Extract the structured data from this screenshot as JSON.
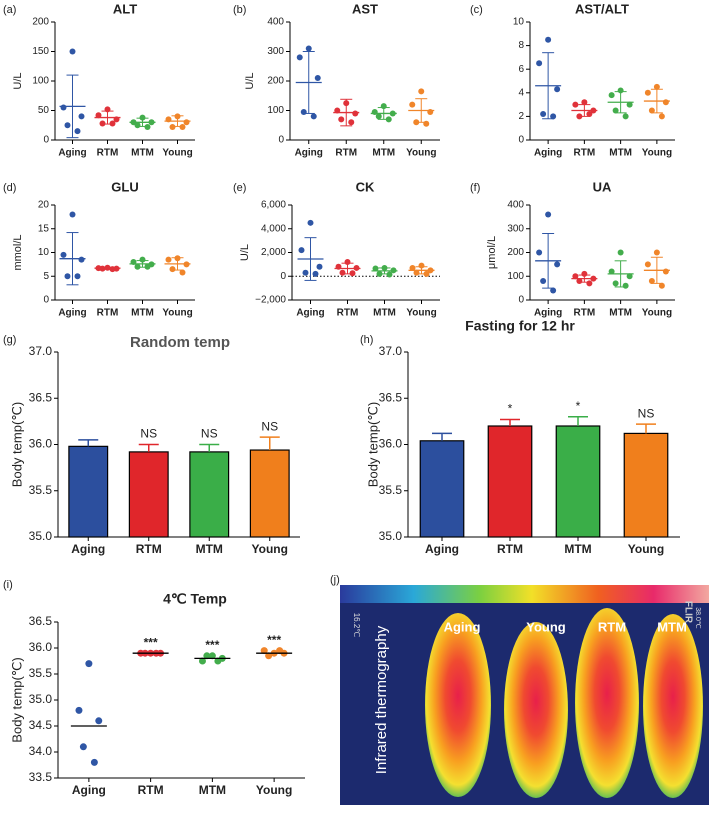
{
  "chart_data": [
    {
      "type": "dot",
      "label": "(a)",
      "title": "ALT",
      "ylabel": "U/L",
      "categories": [
        "Aging",
        "RTM",
        "MTM",
        "Young"
      ],
      "colors": [
        "#2f56a5",
        "#e0323a",
        "#43ad4c",
        "#f0852a"
      ],
      "points": [
        [
          150,
          55,
          40,
          25,
          15
        ],
        [
          52,
          42,
          35,
          28,
          28
        ],
        [
          38,
          30,
          30,
          25,
          22
        ],
        [
          40,
          35,
          30,
          22,
          22
        ]
      ],
      "mean": [
        57,
        38,
        30,
        32
      ],
      "sd": [
        53,
        11,
        7,
        9
      ],
      "ylim": [
        0,
        200
      ],
      "yticks": [
        0,
        50,
        100,
        150,
        200
      ]
    },
    {
      "type": "dot",
      "label": "(b)",
      "title": "AST",
      "ylabel": "U/L",
      "categories": [
        "Aging",
        "RTM",
        "MTM",
        "Young"
      ],
      "colors": [
        "#2f56a5",
        "#e0323a",
        "#43ad4c",
        "#f0852a"
      ],
      "points": [
        [
          310,
          280,
          210,
          95,
          80
        ],
        [
          125,
          100,
          90,
          70,
          60
        ],
        [
          115,
          95,
          90,
          80,
          70
        ],
        [
          165,
          120,
          95,
          60,
          55
        ]
      ],
      "mean": [
        195,
        93,
        90,
        100
      ],
      "sd": [
        105,
        45,
        20,
        40
      ],
      "ylim": [
        0,
        400
      ],
      "yticks": [
        0,
        100,
        200,
        300,
        400
      ]
    },
    {
      "type": "dot",
      "label": "(c)",
      "title": "AST/ALT",
      "categories": [
        "Aging",
        "RTM",
        "MTM",
        "Young"
      ],
      "colors": [
        "#2f56a5",
        "#e0323a",
        "#43ad4c",
        "#f0852a"
      ],
      "points": [
        [
          8.5,
          6.5,
          4.3,
          2.2,
          2.0
        ],
        [
          3.2,
          3.0,
          2.5,
          2.0,
          2.2
        ],
        [
          4.2,
          3.8,
          3.0,
          2.5,
          2.0
        ],
        [
          4.5,
          4.0,
          3.2,
          2.5,
          2.0
        ]
      ],
      "mean": [
        4.6,
        2.5,
        3.2,
        3.3
      ],
      "sd": [
        2.8,
        0.5,
        0.9,
        1.0
      ],
      "ylim": [
        0,
        10
      ],
      "yticks": [
        0,
        2,
        4,
        6,
        8,
        10
      ]
    },
    {
      "type": "dot",
      "label": "(d)",
      "title": "GLU",
      "ylabel": "mmol/L",
      "categories": [
        "Aging",
        "RTM",
        "MTM",
        "Young"
      ],
      "colors": [
        "#2f56a5",
        "#e0323a",
        "#43ad4c",
        "#f0852a"
      ],
      "points": [
        [
          18,
          9.5,
          8.5,
          5,
          5
        ],
        [
          6.8,
          6.7,
          6.6,
          6.6,
          6.5
        ],
        [
          8.5,
          8,
          7.5,
          7,
          7
        ],
        [
          8.8,
          8.5,
          7.5,
          6.5,
          5.8
        ]
      ],
      "mean": [
        8.7,
        6.7,
        7.6,
        7.6
      ],
      "sd": [
        5.5,
        0.2,
        0.7,
        1.3
      ],
      "ylim": [
        0,
        20
      ],
      "yticks": [
        0,
        5,
        10,
        15,
        20
      ]
    },
    {
      "type": "dot",
      "label": "(e)",
      "title": "CK",
      "ylabel": "U/L",
      "categories": [
        "Aging",
        "RTM",
        "MTM",
        "Young"
      ],
      "colors": [
        "#2f56a5",
        "#e0323a",
        "#43ad4c",
        "#f0852a"
      ],
      "points": [
        [
          4500,
          2200,
          800,
          300,
          200
        ],
        [
          1200,
          800,
          700,
          300,
          250
        ],
        [
          700,
          650,
          500,
          200,
          150
        ],
        [
          900,
          700,
          500,
          300,
          200
        ]
      ],
      "mean": [
        1450,
        650,
        450,
        500
      ],
      "sd": [
        1800,
        450,
        250,
        300
      ],
      "ylim": [
        -2000,
        6000
      ],
      "yticks": [
        {
          "value": -2000,
          "label": "−2,000"
        },
        0,
        {
          "value": 2000,
          "label": "2,000"
        },
        {
          "value": 4000,
          "label": "4,000"
        },
        {
          "value": 6000,
          "label": "6,000"
        }
      ],
      "zero_line": true
    },
    {
      "type": "dot",
      "label": "(f)",
      "title": "UA",
      "ylabel": "μmol/L",
      "categories": [
        "Aging",
        "RTM",
        "MTM",
        "Young"
      ],
      "colors": [
        "#2f56a5",
        "#e0323a",
        "#43ad4c",
        "#f0852a"
      ],
      "points": [
        [
          360,
          200,
          150,
          80,
          40
        ],
        [
          110,
          100,
          90,
          80,
          70
        ],
        [
          200,
          120,
          100,
          70,
          60
        ],
        [
          200,
          150,
          120,
          80,
          60
        ]
      ],
      "mean": [
        165,
        90,
        110,
        125
      ],
      "sd": [
        115,
        15,
        55,
        55
      ],
      "ylim": [
        0,
        400
      ],
      "yticks": [
        0,
        100,
        200,
        300,
        400
      ]
    },
    {
      "type": "bar",
      "label": "(g)",
      "title": "Random temp",
      "ylabel": "Body temp(℃)",
      "categories": [
        "Aging",
        "RTM",
        "MTM",
        "Young"
      ],
      "colors": [
        "#2c4f9e",
        "#e0262b",
        "#3aae48",
        "#f07f1c"
      ],
      "values": [
        35.98,
        35.92,
        35.92,
        35.94
      ],
      "errors": [
        0.07,
        0.08,
        0.08,
        0.14
      ],
      "annotations": [
        null,
        "NS",
        "NS",
        "NS"
      ],
      "ylim": [
        35,
        37
      ],
      "yticks": [
        {
          "value": 35,
          "label": "35.0"
        },
        35.5,
        {
          "value": 36,
          "label": "36.0"
        },
        36.5,
        {
          "value": 37,
          "label": "37.0"
        }
      ]
    },
    {
      "type": "bar",
      "label": "(h)",
      "title": "Fasting for 12 hr",
      "ylabel": "Body temp(℃)",
      "categories": [
        "Aging",
        "RTM",
        "MTM",
        "Young"
      ],
      "colors": [
        "#2c4f9e",
        "#e0262b",
        "#3aae48",
        "#f07f1c"
      ],
      "values": [
        36.04,
        36.2,
        36.2,
        36.12
      ],
      "errors": [
        0.08,
        0.07,
        0.1,
        0.1
      ],
      "annotations": [
        null,
        "*",
        "*",
        "NS"
      ],
      "ylim": [
        35,
        37
      ],
      "yticks": [
        {
          "value": 35,
          "label": "35.0"
        },
        35.5,
        {
          "value": 36,
          "label": "36.0"
        },
        36.5,
        {
          "value": 37,
          "label": "37.0"
        }
      ]
    },
    {
      "type": "dot",
      "label": "(i)",
      "title": "4℃ Temp",
      "ylabel": "Body temp(℃)",
      "categories": [
        "Aging",
        "RTM",
        "MTM",
        "Young"
      ],
      "colors": [
        "#2f56a5",
        "#e0323a",
        "#43ad4c",
        "#f0852a"
      ],
      "points": [
        [
          35.7,
          34.8,
          34.6,
          34.1,
          33.8
        ],
        [
          35.9,
          35.9,
          35.9,
          35.9,
          35.9
        ],
        [
          35.85,
          35.75,
          35.8,
          35.85,
          35.75
        ],
        [
          35.9,
          35.95,
          35.9,
          35.85,
          35.95
        ]
      ],
      "mean": [
        34.5,
        35.9,
        35.8,
        35.9
      ],
      "annotations": [
        null,
        "***",
        "***",
        "***"
      ],
      "ylim": [
        33.5,
        36.5
      ],
      "yticks": [
        33.5,
        {
          "value": 34,
          "label": "34.0"
        },
        34.5,
        {
          "value": 35,
          "label": "35.0"
        },
        35.5,
        {
          "value": 36,
          "label": "36.0"
        },
        36.5
      ]
    }
  ],
  "panel_j": {
    "label": "(j)",
    "side_label": "Infrared thermography",
    "brand": "FLIR",
    "scale_min": "16.2℃",
    "scale_max": "38.0℃",
    "mice": [
      "Aging",
      "Young",
      "RTM",
      "MTM"
    ]
  }
}
